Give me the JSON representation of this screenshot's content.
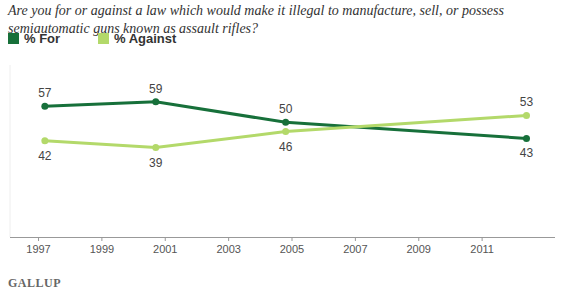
{
  "chart_data": {
    "type": "line",
    "title": "Are you for or against a law which would make it illegal to manufacture, sell, or possess semiautomatic guns known as assault rifles?",
    "x": [
      1997.2,
      2000.7,
      2004.8,
      2012.4
    ],
    "series": [
      {
        "name": "% For",
        "color": "#17703a",
        "values": [
          57,
          59,
          50,
          43
        ],
        "marker": "circle"
      },
      {
        "name": "% Against",
        "color": "#b3d96a",
        "values": [
          42,
          39,
          46,
          53
        ],
        "marker": "circle"
      }
    ],
    "xlim": [
      1996.1,
      2013.3
    ],
    "xticks": [
      1997,
      1999,
      2001,
      2003,
      2005,
      2007,
      2009,
      2011
    ],
    "ylim": [
      0,
      75
    ],
    "tick_labels": "x",
    "data_labels": true,
    "grid": false,
    "legend": "top-left",
    "source": "GALLUP"
  }
}
